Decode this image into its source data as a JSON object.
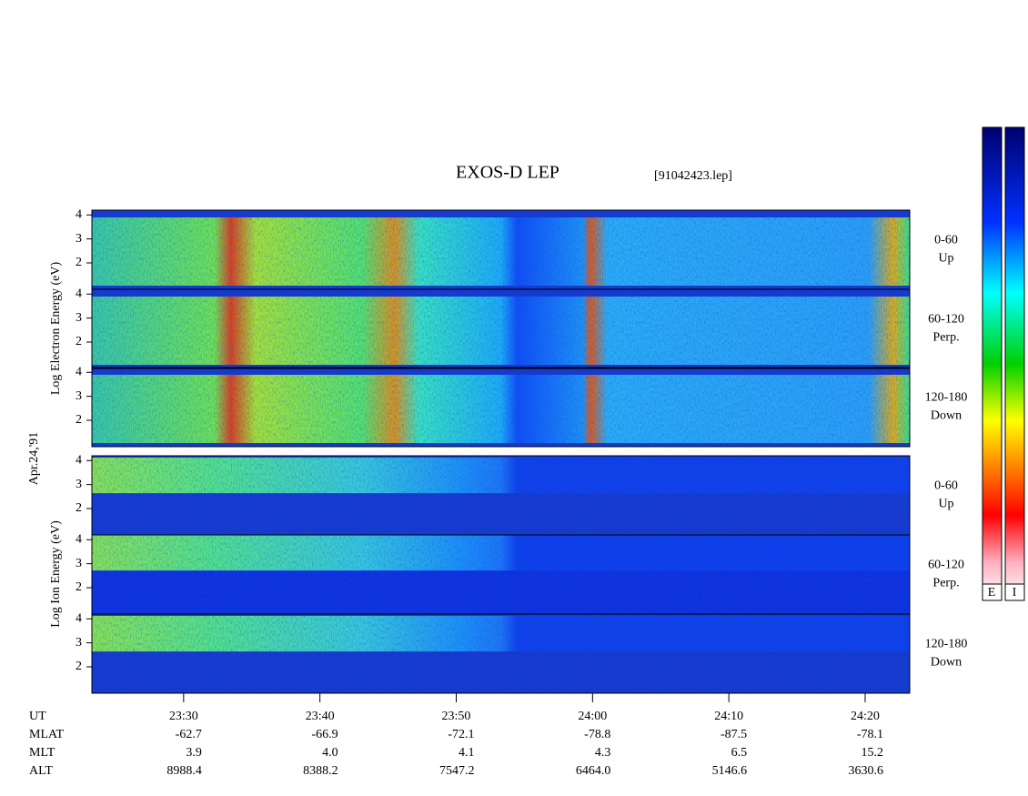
{
  "header": {
    "title": "EXOS-D LEP",
    "file": "[91042423.lep]"
  },
  "date": "Apr.24,'91",
  "electron": {
    "axis_label": "Log Electron Energy (eV)",
    "panels": [
      {
        "pitch": "0-60",
        "direction": "Up",
        "ylim": [
          0.9,
          4.2
        ],
        "yticks": [
          2,
          3,
          4
        ]
      },
      {
        "pitch": "60-120",
        "direction": "Perp.",
        "ylim": [
          0.9,
          4.2
        ],
        "yticks": [
          2,
          3,
          4
        ]
      },
      {
        "pitch": "120-180",
        "direction": "Down",
        "ylim": [
          0.9,
          4.2
        ],
        "yticks": [
          2,
          3,
          4
        ]
      }
    ]
  },
  "ion": {
    "axis_label": "Log Ion Energy (eV)",
    "panels": [
      {
        "pitch": "0-60",
        "direction": "Up",
        "ylim": [
          0.9,
          4.2
        ],
        "yticks": [
          2,
          3,
          4
        ]
      },
      {
        "pitch": "60-120",
        "direction": "Perp.",
        "ylim": [
          0.9,
          4.2
        ],
        "yticks": [
          2,
          3,
          4
        ]
      },
      {
        "pitch": "120-180",
        "direction": "Down",
        "ylim": [
          0.9,
          4.2
        ],
        "yticks": [
          2,
          3,
          4
        ]
      }
    ]
  },
  "time_axis": {
    "xlim": [
      23.27,
      83.27
    ],
    "xticks": [
      {
        "value": 30,
        "label": "23:30"
      },
      {
        "value": 40,
        "label": "23:40"
      },
      {
        "value": 50,
        "label": "23:50"
      },
      {
        "value": 60,
        "label": "24:00"
      },
      {
        "value": 70,
        "label": "24:10"
      },
      {
        "value": 80,
        "label": "24:20"
      }
    ]
  },
  "ephemeris": {
    "rows": [
      {
        "label": "UT"
      },
      {
        "label": "MLAT",
        "values": [
          "-62.7",
          "-66.9",
          "-72.1",
          "-78.8",
          "-87.5",
          "-78.1"
        ]
      },
      {
        "label": "MLT",
        "values": [
          "3.9",
          "4.0",
          "4.1",
          "4.3",
          "6.5",
          "15.2"
        ]
      },
      {
        "label": "ALT",
        "values": [
          "8988.4",
          "8388.2",
          "7547.2",
          "6464.0",
          "5146.6",
          "3630.6"
        ]
      }
    ]
  },
  "colorbar": {
    "labels": [
      "E",
      "I"
    ]
  }
}
